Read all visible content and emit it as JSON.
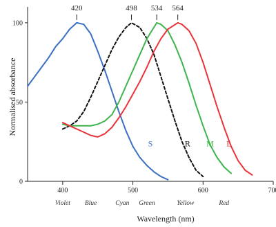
{
  "chart_data": {
    "type": "line",
    "title": "",
    "xlabel": "Wavelength (nm)",
    "ylabel": "Normalised absorbance",
    "xlim": [
      350,
      700
    ],
    "ylim": [
      0,
      110
    ],
    "x_ticks": [
      "400",
      "500",
      "600",
      "700"
    ],
    "y_ticks": [
      "0",
      "50",
      "100"
    ],
    "color_regions": [
      {
        "label": "Violet",
        "x": 400
      },
      {
        "label": "Blue",
        "x": 440
      },
      {
        "label": "Cyan",
        "x": 485
      },
      {
        "label": "Green",
        "x": 520
      },
      {
        "label": "Yellow",
        "x": 575
      },
      {
        "label": "Red",
        "x": 630
      }
    ],
    "peaks": [
      "420",
      "498",
      "534",
      "564"
    ],
    "peak_x": [
      420,
      498,
      534,
      564
    ],
    "series": [
      {
        "name": "S",
        "color": "#3a6fc4",
        "dash": false,
        "x": [
          350,
          360,
          370,
          380,
          390,
          400,
          410,
          420,
          430,
          440,
          450,
          460,
          470,
          480,
          490,
          500,
          510,
          520,
          530,
          540,
          550
        ],
        "y": [
          60,
          66,
          72,
          78,
          85,
          90,
          96,
          100,
          99,
          93,
          82,
          70,
          57,
          44,
          32,
          22,
          15,
          10,
          6,
          3,
          1
        ]
      },
      {
        "name": "R",
        "color": "#111111",
        "dash": true,
        "x": [
          400,
          410,
          420,
          430,
          440,
          450,
          460,
          470,
          480,
          490,
          498,
          510,
          520,
          530,
          540,
          550,
          560,
          570,
          580,
          590,
          600
        ],
        "y": [
          33,
          35,
          38,
          44,
          53,
          63,
          73,
          83,
          91,
          97,
          100,
          97,
          90,
          80,
          66,
          52,
          38,
          25,
          15,
          7,
          3
        ]
      },
      {
        "name": "M",
        "color": "#3cb44b",
        "dash": false,
        "x": [
          400,
          410,
          420,
          430,
          440,
          450,
          460,
          470,
          480,
          490,
          500,
          510,
          520,
          534,
          540,
          550,
          560,
          570,
          580,
          590,
          600,
          610,
          620,
          630,
          640
        ],
        "y": [
          36,
          35,
          35,
          35,
          35,
          36,
          38,
          42,
          50,
          60,
          70,
          80,
          90,
          100,
          99,
          95,
          86,
          75,
          62,
          48,
          35,
          23,
          15,
          9,
          5
        ]
      },
      {
        "name": "L",
        "color": "#e8333a",
        "dash": false,
        "x": [
          400,
          410,
          420,
          430,
          440,
          450,
          460,
          470,
          480,
          490,
          500,
          510,
          520,
          530,
          540,
          550,
          564,
          570,
          580,
          590,
          600,
          610,
          620,
          630,
          640,
          650,
          660,
          670
        ],
        "y": [
          37,
          35,
          33,
          31,
          29,
          28,
          30,
          34,
          40,
          47,
          55,
          63,
          72,
          82,
          90,
          96,
          100,
          99,
          95,
          87,
          75,
          61,
          47,
          34,
          22,
          13,
          7,
          4
        ]
      }
    ]
  }
}
